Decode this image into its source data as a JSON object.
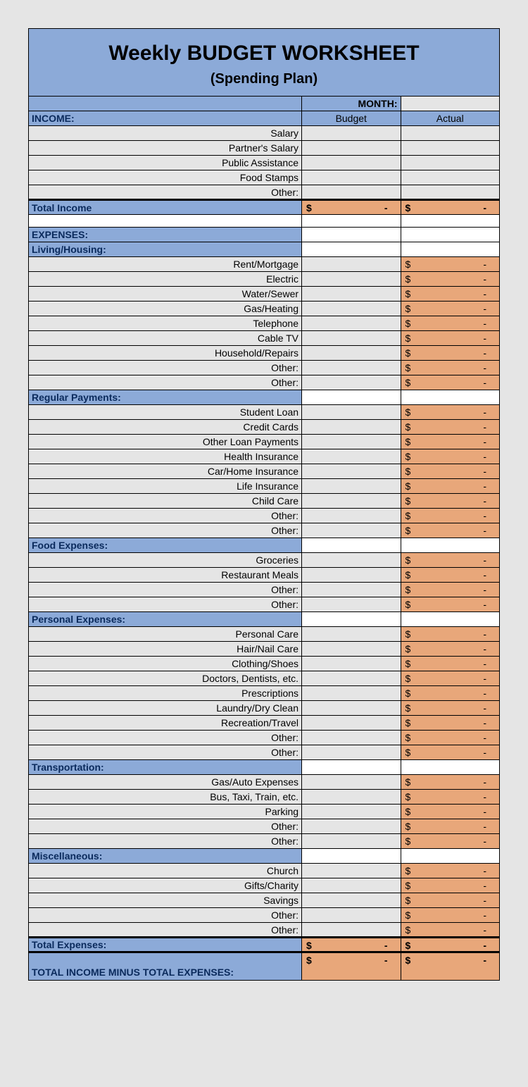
{
  "title": "Weekly BUDGET WORKSHEET",
  "subtitle": "(Spending Plan)",
  "month_label": "MONTH:",
  "columns": {
    "budget": "Budget",
    "actual": "Actual"
  },
  "income_header": "INCOME:",
  "income_items": [
    "Salary",
    "Partner's Salary",
    "Public Assistance",
    "Food Stamps",
    "Other:"
  ],
  "total_income": "Total Income",
  "expenses_header": "EXPENSES:",
  "sections": [
    {
      "name": "Living/Housing:",
      "items": [
        "Rent/Mortgage",
        "Electric",
        "Water/Sewer",
        "Gas/Heating",
        "Telephone",
        "Cable TV",
        "Household/Repairs",
        "Other:",
        "Other:"
      ]
    },
    {
      "name": "Regular Payments:",
      "items": [
        "Student Loan",
        "Credit Cards",
        "Other Loan Payments",
        "Health Insurance",
        "Car/Home Insurance",
        "Life Insurance",
        "Child Care",
        "Other:",
        "Other:"
      ]
    },
    {
      "name": "Food Expenses:",
      "items": [
        "Groceries",
        "Restaurant Meals",
        "Other:",
        "Other:"
      ]
    },
    {
      "name": "Personal Expenses:",
      "items": [
        "Personal Care",
        "Hair/Nail Care",
        "Clothing/Shoes",
        "Doctors, Dentists, etc.",
        "Prescriptions",
        "Laundry/Dry Clean",
        "Recreation/Travel",
        "Other:",
        "Other:"
      ]
    },
    {
      "name": "Transportation:",
      "items": [
        "Gas/Auto Expenses",
        "Bus, Taxi, Train, etc.",
        "Parking",
        "Other:",
        "Other:"
      ]
    },
    {
      "name": "Miscellaneous:",
      "items": [
        "Church",
        "Gifts/Charity",
        "Savings",
        "Other:",
        "Other:"
      ]
    }
  ],
  "total_expenses": "Total Expenses:",
  "net": "TOTAL INCOME MINUS TOTAL EXPENSES:",
  "dollar": "$",
  "dash": "-",
  "colors": {
    "page_bg": "#e5e5e5",
    "header_bg": "#8caad8",
    "orange": "#e8a77a",
    "label_text": "#0a2a5c"
  }
}
